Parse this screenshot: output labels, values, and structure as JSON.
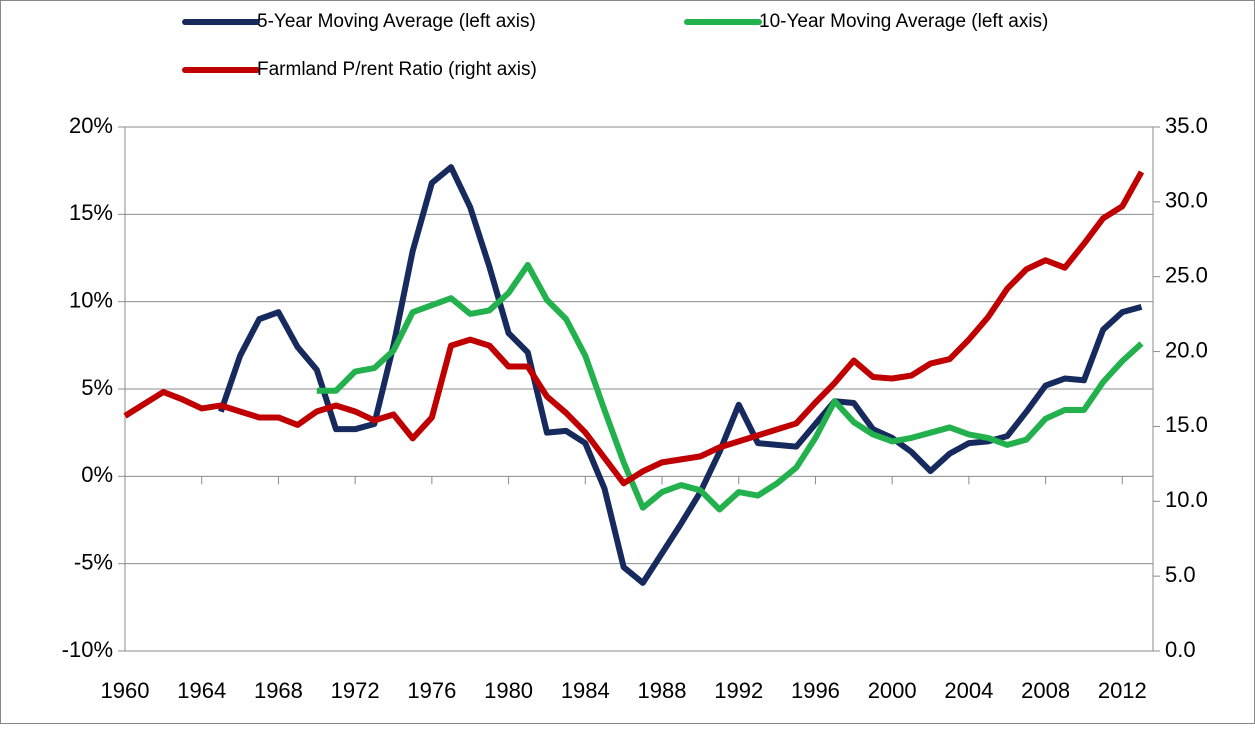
{
  "chart_data": {
    "type": "line",
    "x": [
      1960,
      1961,
      1962,
      1963,
      1964,
      1965,
      1966,
      1967,
      1968,
      1969,
      1970,
      1971,
      1972,
      1973,
      1974,
      1975,
      1976,
      1977,
      1978,
      1979,
      1980,
      1981,
      1982,
      1983,
      1984,
      1985,
      1986,
      1987,
      1988,
      1989,
      1990,
      1991,
      1992,
      1993,
      1994,
      1995,
      1996,
      1997,
      1998,
      1999,
      2000,
      2001,
      2002,
      2003,
      2004,
      2005,
      2006,
      2007,
      2008,
      2009,
      2010,
      2011,
      2012,
      2013
    ],
    "xlim": [
      1960,
      2013.6
    ],
    "xticks": [
      1960,
      1964,
      1968,
      1972,
      1976,
      1980,
      1984,
      1988,
      1992,
      1996,
      2000,
      2004,
      2008,
      2012
    ],
    "ylim": [
      -10,
      20
    ],
    "yticks": [
      {
        "value": -10,
        "label": "-10%"
      },
      {
        "value": -5,
        "label": "-5%"
      },
      {
        "value": 0,
        "label": "0%"
      },
      {
        "value": 5,
        "label": "5%"
      },
      {
        "value": 10,
        "label": "10%"
      },
      {
        "value": 15,
        "label": "15%"
      },
      {
        "value": 20,
        "label": "20%"
      }
    ],
    "y2lim": [
      0,
      35
    ],
    "y2ticks": [
      {
        "value": 0,
        "label": "0.0"
      },
      {
        "value": 5,
        "label": "5.0"
      },
      {
        "value": 10,
        "label": "10.0"
      },
      {
        "value": 15,
        "label": "15.0"
      },
      {
        "value": 20,
        "label": "20.0"
      },
      {
        "value": 25,
        "label": "25.0"
      },
      {
        "value": 30,
        "label": "30.0"
      },
      {
        "value": 35,
        "label": "35.0"
      }
    ],
    "grid": true,
    "legend": "top",
    "series": [
      {
        "name": "5-Year Moving Average (left axis)",
        "color": "#162a5e",
        "values": [
          null,
          null,
          null,
          null,
          null,
          3.7,
          6.9,
          9.0,
          9.4,
          7.4,
          6.1,
          2.7,
          2.7,
          3.0,
          7.5,
          12.9,
          16.8,
          17.7,
          15.4,
          12.0,
          8.2,
          7.1,
          2.5,
          2.6,
          1.9,
          -0.7,
          -5.2,
          -6.1,
          -4.4,
          -2.7,
          -0.9,
          1.4,
          4.1,
          1.9,
          1.8,
          1.7,
          3.0,
          4.3,
          4.2,
          2.7,
          2.2,
          1.4,
          0.3,
          1.3,
          1.9,
          2.0,
          2.3,
          3.7,
          5.2,
          5.6,
          5.5,
          8.4,
          9.4,
          9.7
        ]
      },
      {
        "name": "10-Year Moving Average (left axis)",
        "color": "#22b14c",
        "values": [
          null,
          null,
          null,
          null,
          null,
          null,
          null,
          null,
          null,
          null,
          4.9,
          4.9,
          6.0,
          6.2,
          7.2,
          9.4,
          9.8,
          10.2,
          9.3,
          9.5,
          10.5,
          12.1,
          10.1,
          9.0,
          6.9,
          3.8,
          0.8,
          -1.8,
          -0.9,
          -0.5,
          -0.8,
          -1.9,
          -0.9,
          -1.1,
          -0.4,
          0.5,
          2.2,
          4.3,
          3.1,
          2.4,
          2.0,
          2.2,
          2.5,
          2.8,
          2.4,
          2.2,
          1.8,
          2.1,
          3.3,
          3.8,
          3.8,
          5.4,
          6.6,
          7.6
        ]
      },
      {
        "name": "Farmland P/rent Ratio (right axis)",
        "color": "#c00000",
        "axis": "y2",
        "values": [
          15.7,
          16.5,
          17.3,
          16.8,
          16.2,
          16.4,
          16.0,
          15.6,
          15.6,
          15.1,
          16.0,
          16.4,
          16.0,
          15.4,
          15.8,
          14.2,
          15.6,
          20.4,
          20.8,
          20.4,
          19.0,
          19.0,
          17.0,
          15.9,
          14.6,
          12.9,
          11.2,
          12.0,
          12.6,
          12.8,
          13.0,
          13.6,
          14.0,
          14.4,
          14.8,
          15.2,
          16.6,
          17.9,
          19.4,
          18.3,
          18.2,
          18.4,
          19.2,
          19.5,
          20.8,
          22.3,
          24.2,
          25.5,
          26.1,
          25.6,
          27.2,
          28.9,
          29.7,
          32.0
        ]
      }
    ]
  }
}
